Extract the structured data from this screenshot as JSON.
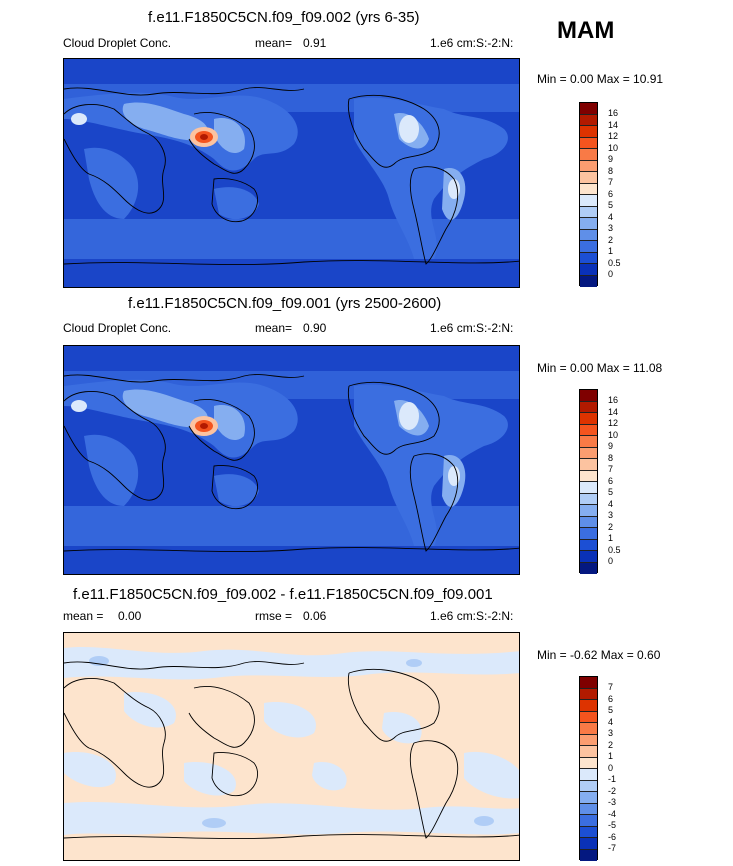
{
  "season": "MAM",
  "panels": [
    {
      "title": "f.e11.F1850C5CN.f09_f09.002 (yrs 6-35)",
      "left_label": "Cloud Droplet Conc.",
      "mid_label": "mean=",
      "mid_value": "0.91",
      "units": "1.e6 cm:S:-2:N:",
      "minmax": "Min =   0.00 Max =  10.91",
      "colorbar": {
        "levels": [
          "16",
          "14",
          "12",
          "10",
          "9",
          "8",
          "7",
          "6",
          "5",
          "4",
          "3",
          "2",
          "1",
          "0.5",
          "0"
        ],
        "colors": [
          "#7f0000",
          "#b21a00",
          "#dd3300",
          "#f4541e",
          "#f97a46",
          "#fb9d70",
          "#fcc3a0",
          "#fde4cd",
          "#dbe9fb",
          "#b0cdf6",
          "#85aef0",
          "#5f8fe8",
          "#3b6ee0",
          "#1c4fd4",
          "#0a31b8",
          "#041880"
        ]
      }
    },
    {
      "title": "f.e11.F1850C5CN.f09_f09.001 (yrs 2500-2600)",
      "left_label": "Cloud Droplet Conc.",
      "mid_label": "mean=",
      "mid_value": "0.90",
      "units": "1.e6 cm:S:-2:N:",
      "minmax": "Min =   0.00 Max =  11.08",
      "colorbar": {
        "levels": [
          "16",
          "14",
          "12",
          "10",
          "9",
          "8",
          "7",
          "6",
          "5",
          "4",
          "3",
          "2",
          "1",
          "0.5",
          "0"
        ],
        "colors": [
          "#7f0000",
          "#b21a00",
          "#dd3300",
          "#f4541e",
          "#f97a46",
          "#fb9d70",
          "#fcc3a0",
          "#fde4cd",
          "#dbe9fb",
          "#b0cdf6",
          "#85aef0",
          "#5f8fe8",
          "#3b6ee0",
          "#1c4fd4",
          "#0a31b8",
          "#041880"
        ]
      }
    },
    {
      "title": "f.e11.F1850C5CN.f09_f09.002 - f.e11.F1850C5CN.f09_f09.001",
      "left_label": "mean =",
      "left_value": "0.00",
      "mid_label": "rmse =",
      "mid_value": "0.06",
      "units": "1.e6 cm:S:-2:N:",
      "minmax": "Min =  -0.62 Max =   0.60",
      "colorbar": {
        "levels": [
          "7",
          "6",
          "5",
          "4",
          "3",
          "2",
          "1",
          "0",
          "-1",
          "-2",
          "-3",
          "-4",
          "-5",
          "-6",
          "-7"
        ],
        "colors": [
          "#7f0000",
          "#b21a00",
          "#dd3300",
          "#f4541e",
          "#f97a46",
          "#fb9d70",
          "#fcc3a0",
          "#fde4cd",
          "#dbe9fb",
          "#b0cdf6",
          "#85aef0",
          "#5f8fe8",
          "#3b6ee0",
          "#1c4fd4",
          "#0a31b8",
          "#041880"
        ]
      }
    }
  ]
}
